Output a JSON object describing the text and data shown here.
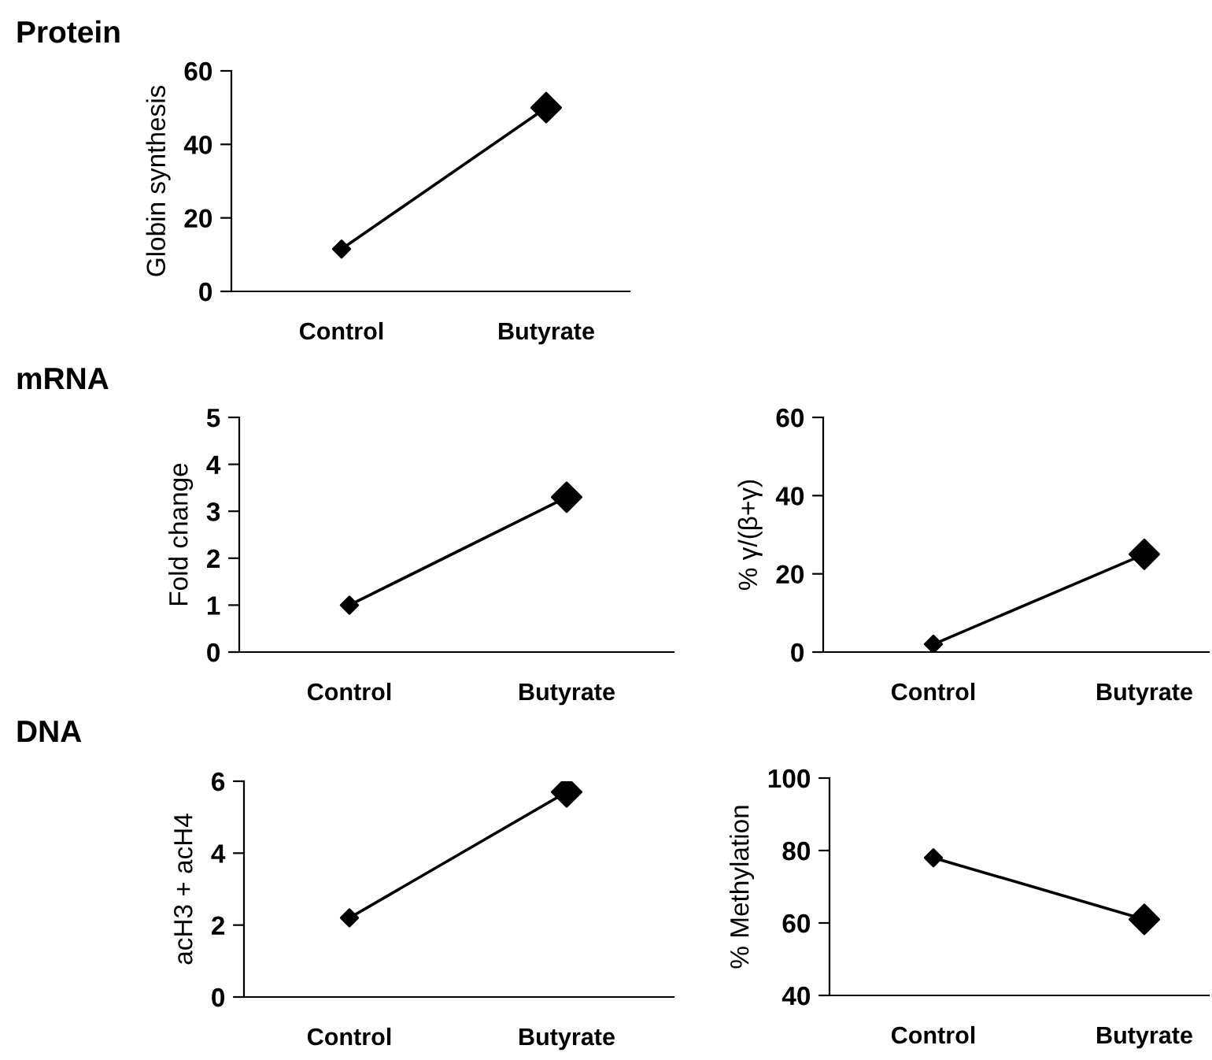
{
  "chart_data": [
    {
      "type": "line",
      "title": "Protein",
      "ylabel": "Globin synthesis",
      "categories": [
        "Control",
        "Butyrate"
      ],
      "series": [
        {
          "color": "#000000",
          "values": [
            11.5,
            50
          ]
        }
      ],
      "ylim": [
        0,
        60
      ],
      "yticks": [
        0,
        20,
        40,
        60
      ],
      "marker": "diamond",
      "line_style": "solid"
    },
    {
      "type": "line",
      "title": "mRNA",
      "ylabel": "Fold change",
      "categories": [
        "Control",
        "Butyrate"
      ],
      "series": [
        {
          "color": "#000000",
          "values": [
            1,
            3.3
          ]
        }
      ],
      "ylim": [
        0,
        5
      ],
      "yticks": [
        0,
        1,
        2,
        3,
        4,
        5
      ],
      "marker": "diamond",
      "line_style": "solid"
    },
    {
      "type": "line",
      "ylabel": "% γ/(β+γ)",
      "categories": [
        "Control",
        "Butyrate"
      ],
      "series": [
        {
          "color": "#000000",
          "values": [
            2,
            25
          ]
        }
      ],
      "ylim": [
        0,
        60
      ],
      "yticks": [
        0,
        20,
        40,
        60
      ],
      "marker": "diamond",
      "line_style": "solid"
    },
    {
      "type": "line",
      "title": "DNA",
      "ylabel": "acH3 + acH4",
      "categories": [
        "Control",
        "Butyrate"
      ],
      "series": [
        {
          "color": "#000000",
          "values": [
            2.2,
            5.7
          ]
        }
      ],
      "ylim": [
        0,
        6
      ],
      "yticks": [
        0,
        2,
        4,
        6
      ],
      "marker": "diamond",
      "line_style": "solid"
    },
    {
      "type": "line",
      "ylabel": "% Methylation",
      "categories": [
        "Control",
        "Butyrate"
      ],
      "series": [
        {
          "color": "#000000",
          "values": [
            78,
            61
          ]
        }
      ],
      "ylim": [
        40,
        100
      ],
      "yticks": [
        40,
        60,
        80,
        100
      ],
      "marker": "diamond",
      "line_style": "solid"
    }
  ]
}
